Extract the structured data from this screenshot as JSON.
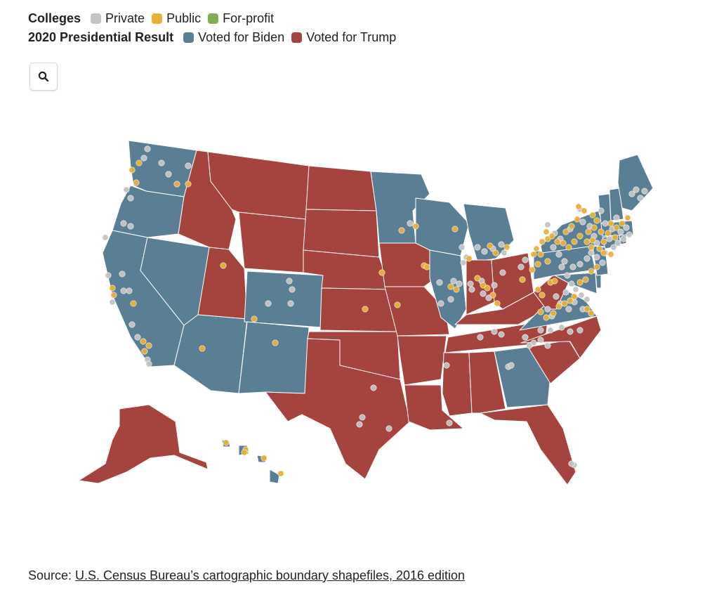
{
  "legend": {
    "colleges": {
      "title": "Colleges",
      "items": [
        {
          "label": "Private",
          "color": "#c4c4c4"
        },
        {
          "label": "Public",
          "color": "#e8b13a"
        },
        {
          "label": "For-profit",
          "color": "#7fae56"
        }
      ]
    },
    "result": {
      "title": "2020 Presidential Result",
      "items": [
        {
          "label": "Voted for Biden",
          "color": "#5a7f95"
        },
        {
          "label": "Voted for Trump",
          "color": "#a5433f"
        }
      ]
    }
  },
  "search": {
    "icon": "search-icon"
  },
  "colors": {
    "biden": "#5a7f95",
    "trump": "#a5433f",
    "private": "#c4c4c4",
    "public": "#e8b13a",
    "border": "#ffffff"
  },
  "states": {
    "WA": "biden",
    "OR": "biden",
    "CA": "biden",
    "NV": "biden",
    "AZ": "biden",
    "CO": "biden",
    "NM": "biden",
    "MN": "biden",
    "WI": "biden",
    "MI": "biden",
    "IL": "biden",
    "GA": "biden",
    "VA": "biden",
    "PA": "biden",
    "NY": "biden",
    "VT": "biden",
    "NH": "biden",
    "ME": "biden",
    "MA": "biden",
    "CT": "biden",
    "RI": "biden",
    "NJ": "biden",
    "DE": "biden",
    "MD": "biden",
    "HI": "biden",
    "ID": "trump",
    "MT": "trump",
    "WY": "trump",
    "UT": "trump",
    "ND": "trump",
    "SD": "trump",
    "NE": "trump",
    "KS": "trump",
    "OK": "trump",
    "TX": "trump",
    "IA": "trump",
    "MO": "trump",
    "AR": "trump",
    "LA": "trump",
    "MS": "trump",
    "AL": "trump",
    "TN": "trump",
    "KY": "trump",
    "IN": "trump",
    "OH": "trump",
    "WV": "trump",
    "NC": "trump",
    "SC": "trump",
    "FL": "trump",
    "AK": "trump"
  },
  "source": {
    "prefix": "Source: ",
    "link_text": "U.S. Census Bureau’s cartographic boundary shapefiles, 2016 edition"
  }
}
